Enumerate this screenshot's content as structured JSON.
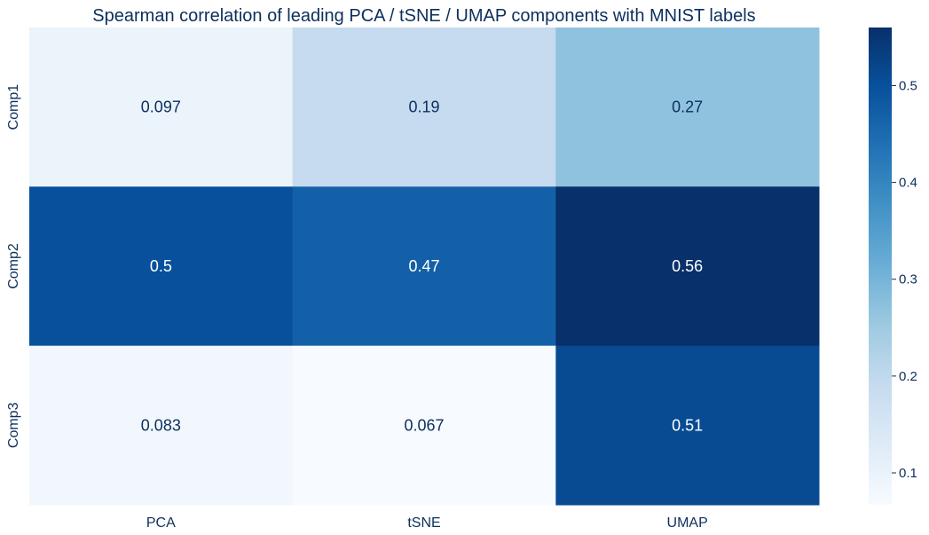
{
  "chart_data": {
    "type": "heatmap",
    "title": "Spearman correlation of leading PCA / tSNE / UMAP components with MNIST labels",
    "x_categories": [
      "PCA",
      "tSNE",
      "UMAP"
    ],
    "y_categories": [
      "Comp1",
      "Comp2",
      "Comp3"
    ],
    "values": [
      [
        0.097,
        0.19,
        0.27
      ],
      [
        0.5,
        0.47,
        0.56
      ],
      [
        0.083,
        0.067,
        0.51
      ]
    ],
    "cell_labels": [
      [
        "0.097",
        "0.19",
        "0.27"
      ],
      [
        "0.5",
        "0.47",
        "0.56"
      ],
      [
        "0.083",
        "0.067",
        "0.51"
      ]
    ],
    "colormap": "Blues",
    "color_range": [
      0.067,
      0.56
    ],
    "colorbar": {
      "ticks": [
        0.1,
        0.2,
        0.3,
        0.4,
        0.5
      ],
      "tick_labels": [
        "0.1",
        "0.2",
        "0.3",
        "0.4",
        "0.5"
      ],
      "placement": "right"
    },
    "grid": false
  },
  "colors": {
    "text": "#0d2f5c",
    "cell_text_dark": "#0d2f5c",
    "cell_text_light": "#ffffff",
    "blues_stops": [
      "#f7fbff",
      "#deebf7",
      "#c6dbef",
      "#9ecae1",
      "#6baed6",
      "#4292c6",
      "#2171b5",
      "#08519c",
      "#08306b"
    ]
  }
}
